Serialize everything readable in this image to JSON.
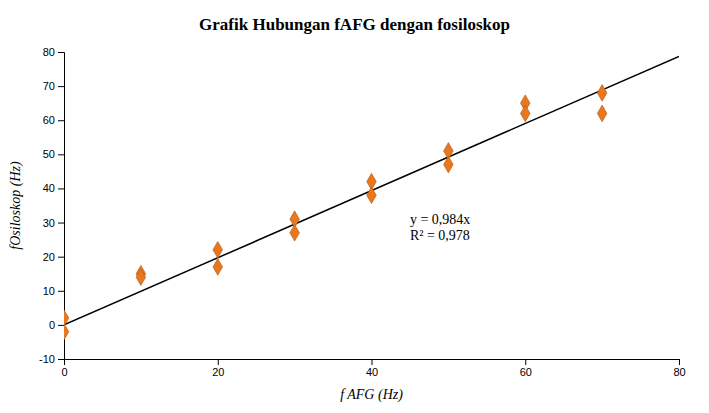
{
  "chart_data": {
    "type": "scatter",
    "title": "Grafik Hubungan fAFG dengan fosiloskop",
    "xlabel": "f AFG (Hz)",
    "ylabel": "fOsiloskop (Hz)",
    "series": [
      {
        "type": "scatter",
        "marker": "diamond",
        "color": "#E87820",
        "x": [
          0,
          0,
          10,
          10,
          20,
          20,
          30,
          30,
          40,
          40,
          50,
          50,
          60,
          60,
          70,
          70
        ],
        "values": [
          2,
          -2,
          15,
          14,
          22,
          17,
          31,
          27,
          42,
          38,
          51,
          47,
          65,
          62,
          68,
          62
        ]
      },
      {
        "type": "line",
        "line_style": "solid",
        "color": "black",
        "x": [
          0,
          80
        ],
        "values": [
          0,
          78.72
        ]
      }
    ],
    "annotations": [
      {
        "text": "y = 0,984x\nR² = 0,978",
        "x": 45,
        "y": 28
      }
    ],
    "xlim": [
      0,
      80
    ],
    "ylim": [
      -10,
      80
    ],
    "xticks": [
      0,
      20,
      40,
      60,
      80
    ],
    "yticks": [
      -10,
      0,
      10,
      20,
      30,
      40,
      50,
      60,
      70,
      80
    ],
    "grid": false
  }
}
